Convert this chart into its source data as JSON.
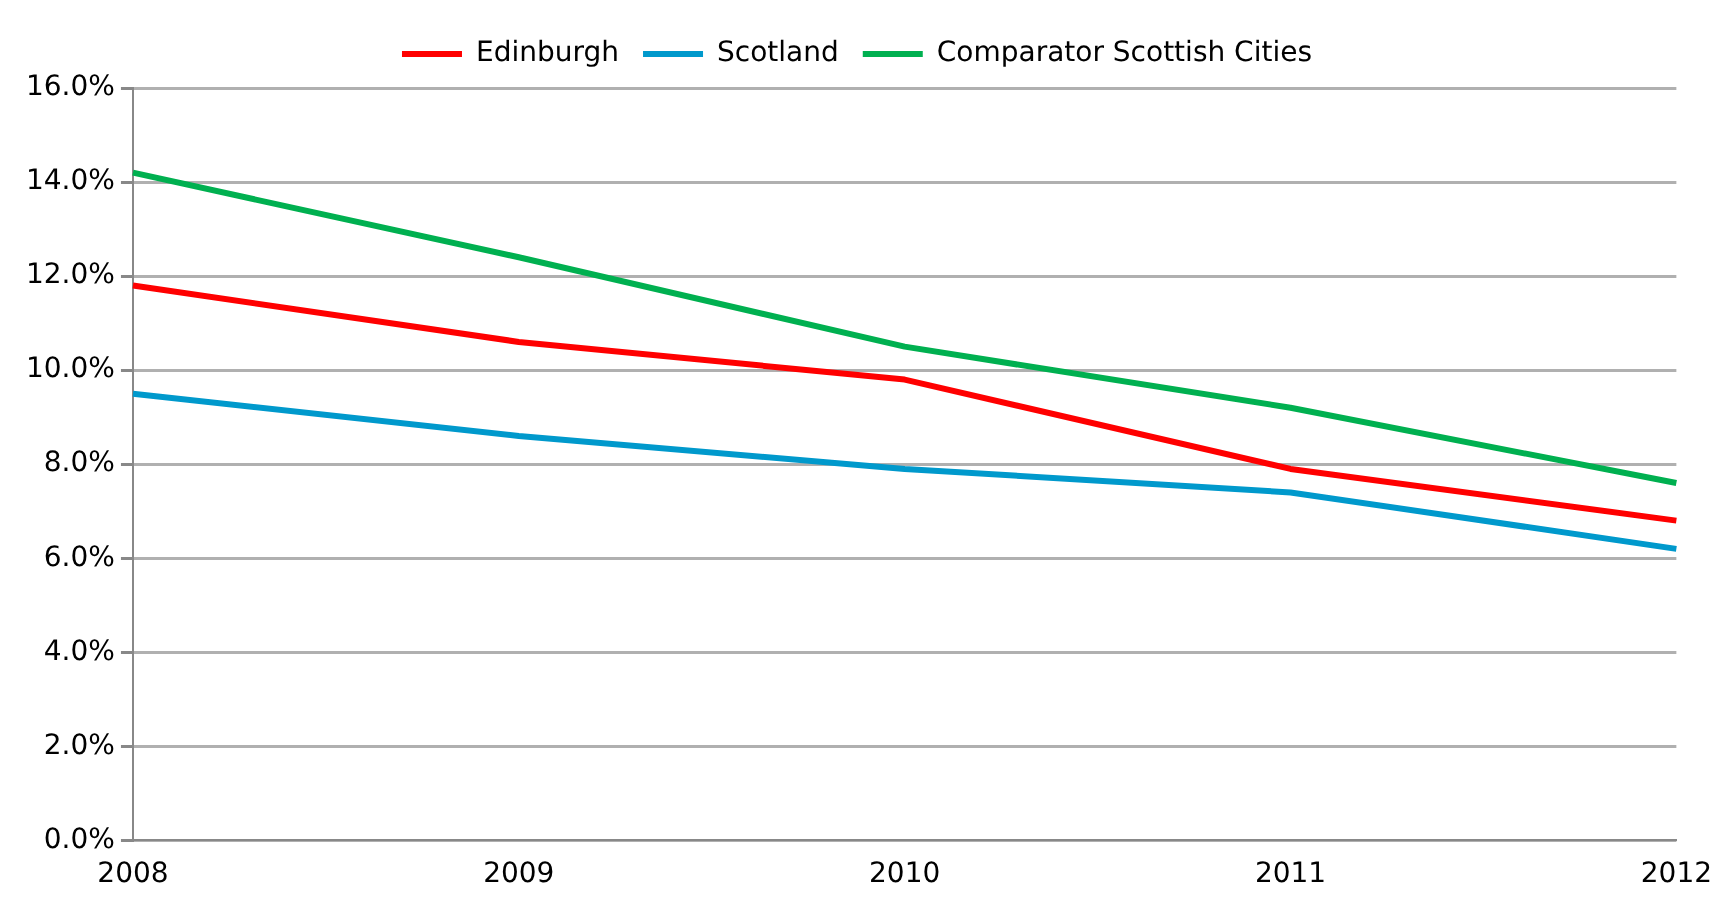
{
  "chart_data": {
    "type": "line",
    "categories": [
      "2008",
      "2009",
      "2010",
      "2011",
      "2012"
    ],
    "series": [
      {
        "name": "Edinburgh",
        "color": "#ff0000",
        "values": [
          11.8,
          10.6,
          9.8,
          7.9,
          6.8
        ]
      },
      {
        "name": "Scotland",
        "color": "#0099cc",
        "values": [
          9.5,
          8.6,
          7.9,
          7.4,
          6.2
        ]
      },
      {
        "name": "Comparator Scottish Cities",
        "color": "#00b050",
        "values": [
          14.2,
          12.4,
          10.5,
          9.2,
          7.6
        ]
      }
    ],
    "ylim": [
      0,
      16
    ],
    "yticks": [
      {
        "value": 0,
        "label": "0.0%"
      },
      {
        "value": 2,
        "label": "2.0%"
      },
      {
        "value": 4,
        "label": "4.0%"
      },
      {
        "value": 6,
        "label": "6.0%"
      },
      {
        "value": 8,
        "label": "8.0%"
      },
      {
        "value": 10,
        "label": "10.0%"
      },
      {
        "value": 12,
        "label": "12.0%"
      },
      {
        "value": 14,
        "label": "14.0%"
      },
      {
        "value": 16,
        "label": "16.0%"
      }
    ],
    "grid": "y",
    "legend": "top",
    "marker": "none",
    "line_style": "solid"
  }
}
